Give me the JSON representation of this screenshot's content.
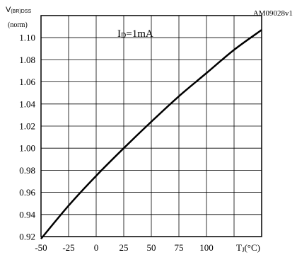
{
  "chart_data": {
    "type": "line",
    "figure_id": "AM09028v1",
    "ylabel_main": "V",
    "ylabel_sub": "(BR)DSS",
    "ylabel_unit": "(norm)",
    "xlabel_main": "T",
    "xlabel_sub": "J",
    "xlabel_unit": "(°C)",
    "annotation_main": "I",
    "annotation_sub": "D",
    "annotation_value": "=1mA",
    "xlim": [
      -50,
      150
    ],
    "ylim": [
      0.92,
      1.12
    ],
    "grid": true,
    "x_ticks": [
      -50,
      -25,
      0,
      25,
      50,
      75,
      100
    ],
    "y_ticks": [
      0.92,
      0.94,
      0.96,
      0.98,
      1.0,
      1.02,
      1.04,
      1.06,
      1.08,
      1.1
    ],
    "x_tick_labels": [
      "-50",
      "-25",
      "0",
      "25",
      "50",
      "75",
      "100"
    ],
    "y_tick_labels": [
      "0.92",
      "0.94",
      "0.96",
      "0.98",
      "1.00",
      "1.02",
      "1.04",
      "1.06",
      "1.08",
      "1.10"
    ],
    "series": [
      {
        "x": [
          -50,
          -25,
          0,
          25,
          50,
          75,
          100,
          125,
          150
        ],
        "y": [
          0.918,
          0.948,
          0.975,
          1.0,
          1.024,
          1.047,
          1.068,
          1.089,
          1.107
        ]
      }
    ]
  }
}
